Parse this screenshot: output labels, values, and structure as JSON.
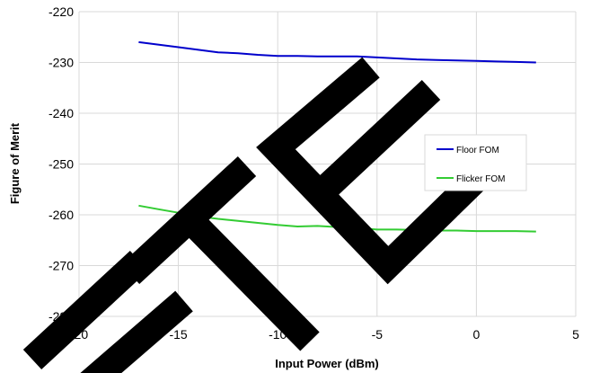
{
  "chart_data": {
    "type": "line",
    "xlabel": "Input Power (dBm)",
    "ylabel": "Figure of Merit",
    "xlim": [
      -20,
      5
    ],
    "ylim": [
      -280,
      -220
    ],
    "xticks": [
      -20,
      -15,
      -10,
      -5,
      0,
      5
    ],
    "yticks": [
      -220,
      -230,
      -240,
      -250,
      -260,
      -270,
      -280
    ],
    "grid": true,
    "legend_position": "right",
    "series": [
      {
        "name": "Floor FOM",
        "color": "#0000CC",
        "x": [
          -17,
          -15,
          -13,
          -12,
          -11,
          -10,
          -9,
          -8,
          -7,
          -6,
          -5,
          -4,
          -3,
          -2,
          -1,
          0,
          1,
          2,
          3
        ],
        "y": [
          -226.0,
          -227.0,
          -228.0,
          -228.2,
          -228.5,
          -228.7,
          -228.7,
          -228.8,
          -228.8,
          -228.8,
          -229.0,
          -229.2,
          -229.4,
          -229.5,
          -229.6,
          -229.7,
          -229.8,
          -229.9,
          -230.0
        ]
      },
      {
        "name": "Flicker FOM",
        "color": "#33CC33",
        "x": [
          -17,
          -16,
          -15,
          -14,
          -13,
          -12,
          -11,
          -10,
          -9,
          -8,
          -7,
          -6,
          -5,
          -4,
          -3,
          -2,
          -1,
          0,
          1,
          2,
          3
        ],
        "y": [
          -258.2,
          -258.9,
          -259.6,
          -260.3,
          -260.8,
          -261.2,
          -261.6,
          -262.0,
          -262.3,
          -262.2,
          -262.4,
          -262.6,
          -262.9,
          -262.9,
          -263.0,
          -263.1,
          -263.1,
          -263.2,
          -263.2,
          -263.2,
          -263.3
        ]
      }
    ]
  }
}
